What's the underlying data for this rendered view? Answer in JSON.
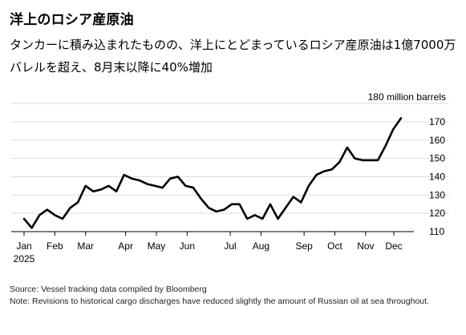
{
  "header": {
    "title": "洋上のロシア産原油",
    "subtitle": "タンカーに積み込まれたものの、洋上にとどまっているロシア産原油は1億7000万バレルを超え、8月末以降に40%増加"
  },
  "footer": {
    "source": "Source: Vessel tracking data compiled by Bloomberg",
    "note": "Note: Revisions to historical cargo discharges have reduced slightly the amount of Russian oil at sea throughout."
  },
  "colors": {
    "line": "#000000",
    "grid": "#dddddd",
    "axis": "#000000"
  },
  "chart_data": {
    "type": "line",
    "title": "洋上のロシア産原油",
    "unit_label": "180 million barrels",
    "ylim": [
      110,
      180
    ],
    "yticks": [
      110,
      120,
      130,
      140,
      150,
      160,
      170
    ],
    "xlim": [
      0,
      11.8
    ],
    "xticks": [
      {
        "x": 0,
        "label": "Jan",
        "year": "2025"
      },
      {
        "x": 1,
        "label": "Feb"
      },
      {
        "x": 2,
        "label": "Mar"
      },
      {
        "x": 3.3,
        "label": "Apr"
      },
      {
        "x": 4.3,
        "label": "May"
      },
      {
        "x": 5.3,
        "label": "Jun"
      },
      {
        "x": 6.7,
        "label": "Jul"
      },
      {
        "x": 7.7,
        "label": "Aug"
      },
      {
        "x": 9.1,
        "label": "Sep"
      },
      {
        "x": 10.1,
        "label": "Oct"
      },
      {
        "x": 11.1,
        "label": "Nov"
      },
      {
        "x": 12.4,
        "label": "Dec"
      }
    ],
    "grid": true,
    "series": [
      {
        "values": [
          [
            0.0,
            117
          ],
          [
            0.25,
            112
          ],
          [
            0.5,
            119
          ],
          [
            0.75,
            122
          ],
          [
            1.0,
            119
          ],
          [
            1.25,
            117
          ],
          [
            1.5,
            123
          ],
          [
            1.75,
            126
          ],
          [
            2.0,
            135
          ],
          [
            2.25,
            132
          ],
          [
            2.5,
            133
          ],
          [
            2.75,
            135
          ],
          [
            3.0,
            132
          ],
          [
            3.25,
            141
          ],
          [
            3.5,
            139
          ],
          [
            3.75,
            138
          ],
          [
            4.0,
            136
          ],
          [
            4.25,
            135
          ],
          [
            4.5,
            134
          ],
          [
            4.75,
            139
          ],
          [
            5.0,
            140
          ],
          [
            5.25,
            135
          ],
          [
            5.5,
            134
          ],
          [
            5.75,
            128
          ],
          [
            6.0,
            123
          ],
          [
            6.25,
            121
          ],
          [
            6.5,
            122
          ],
          [
            6.75,
            125
          ],
          [
            7.0,
            125
          ],
          [
            7.25,
            117
          ],
          [
            7.5,
            119
          ],
          [
            7.75,
            117
          ],
          [
            8.0,
            125
          ],
          [
            8.25,
            117
          ],
          [
            8.5,
            123
          ],
          [
            8.75,
            129
          ],
          [
            9.0,
            126
          ],
          [
            9.25,
            135
          ],
          [
            9.5,
            141
          ],
          [
            9.75,
            143
          ],
          [
            10.0,
            144
          ],
          [
            10.25,
            148
          ],
          [
            10.5,
            156
          ],
          [
            10.75,
            150
          ],
          [
            11.0,
            149
          ],
          [
            11.25,
            149
          ],
          [
            11.5,
            149
          ],
          [
            11.75,
            157
          ],
          [
            12.0,
            166
          ],
          [
            12.25,
            172
          ]
        ]
      }
    ]
  }
}
